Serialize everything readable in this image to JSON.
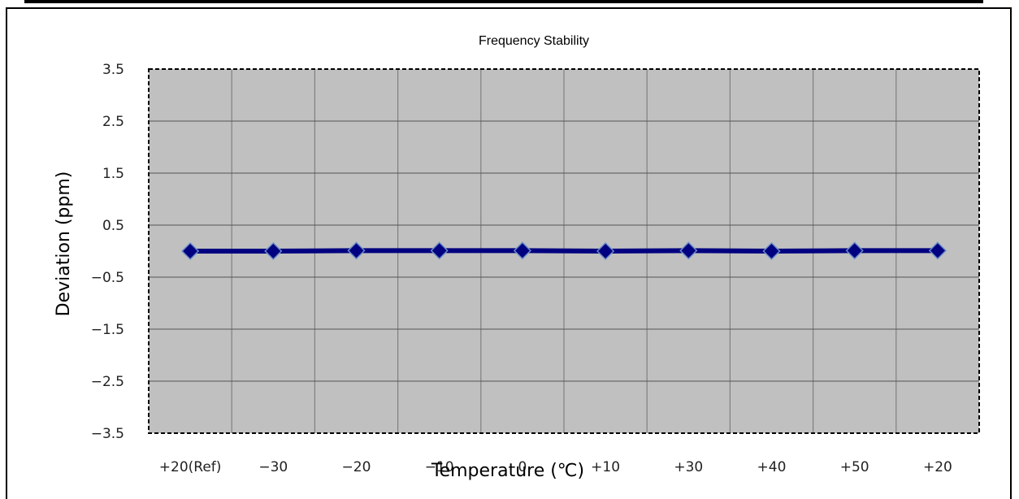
{
  "chart_data": {
    "type": "line",
    "title": "Frequency Stability",
    "xlabel": "Temperature (℃)",
    "ylabel": "Deviation (ppm)",
    "categories": [
      "+20(Ref)",
      "−30",
      "−20",
      "−10",
      "0",
      "+10",
      "+30",
      "+40",
      "+50",
      "+20"
    ],
    "series": [
      {
        "values": [
          0,
          0,
          0.01,
          0.01,
          0.01,
          0,
          0.01,
          0,
          0.01,
          0.01
        ]
      }
    ],
    "yticks": [
      "3.5",
      "2.5",
      "1.5",
      "0.5",
      "−0.5",
      "−1.5",
      "−2.5",
      "−3.5"
    ],
    "ylim": [
      -3.5,
      3.5
    ],
    "grid": true,
    "legend": "none",
    "colors": {
      "plot_background": "#c0c0c0",
      "line": "#000080",
      "marker": "#000080",
      "marker_edge": "#6a8cc8",
      "grid": "#808080"
    }
  }
}
